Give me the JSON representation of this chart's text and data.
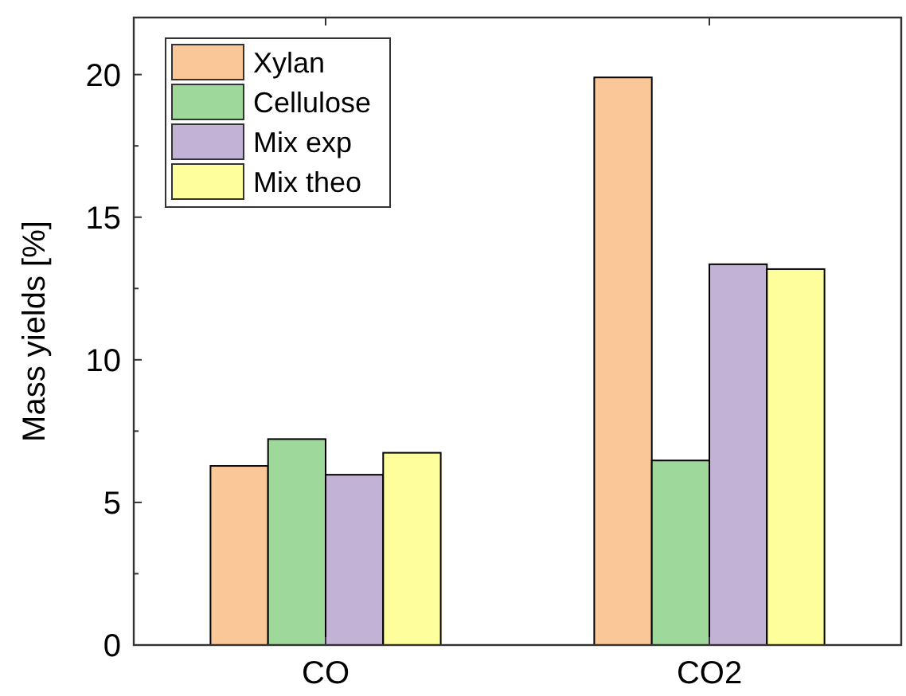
{
  "chart_data": {
    "type": "bar",
    "ylabel": "Mass yields [%]",
    "categories": [
      "CO",
      "CO2"
    ],
    "series": [
      {
        "name": "Xylan",
        "color": "#fac898",
        "values": [
          6.28,
          19.9
        ]
      },
      {
        "name": "Cellulose",
        "color": "#9fd89b",
        "values": [
          7.22,
          6.47
        ]
      },
      {
        "name": "Mix exp",
        "color": "#c2b2d6",
        "values": [
          5.97,
          13.35
        ]
      },
      {
        "name": "Mix theo",
        "color": "#fefe9c",
        "values": [
          6.74,
          13.18
        ]
      }
    ],
    "ylim": [
      0,
      22
    ],
    "yticks": [
      0,
      {
        "value": 2.5,
        "label": null
      },
      5,
      {
        "value": 7.5,
        "label": null
      },
      10,
      {
        "value": 12.5,
        "label": null
      },
      15,
      {
        "value": 17.5,
        "label": null
      },
      20
    ],
    "legend": "top left",
    "grid": false
  }
}
